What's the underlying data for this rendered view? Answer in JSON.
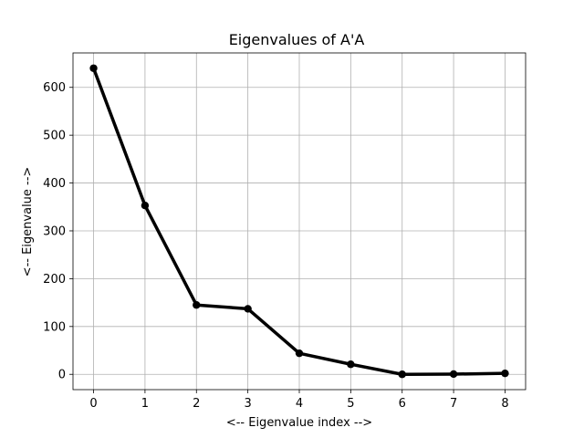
{
  "chart_data": {
    "type": "line",
    "title": "Eigenvalues of A'A",
    "xlabel": "<-- Eigenvalue index -->",
    "ylabel": "<-- Eigenvalue -->",
    "x": [
      0,
      1,
      2,
      3,
      4,
      5,
      6,
      7,
      8
    ],
    "series": [
      {
        "values": [
          640,
          353,
          145,
          137,
          44,
          21,
          0,
          0.5,
          2
        ]
      }
    ],
    "xlim": [
      -0.4,
      8.4
    ],
    "ylim": [
      -32,
      672
    ],
    "xticks": [
      0,
      1,
      2,
      3,
      4,
      5,
      6,
      7,
      8
    ],
    "yticks": [
      0,
      100,
      200,
      300,
      400,
      500,
      600
    ],
    "grid": true,
    "line_color": "#000000",
    "grid_color": "#b0b0b0"
  }
}
